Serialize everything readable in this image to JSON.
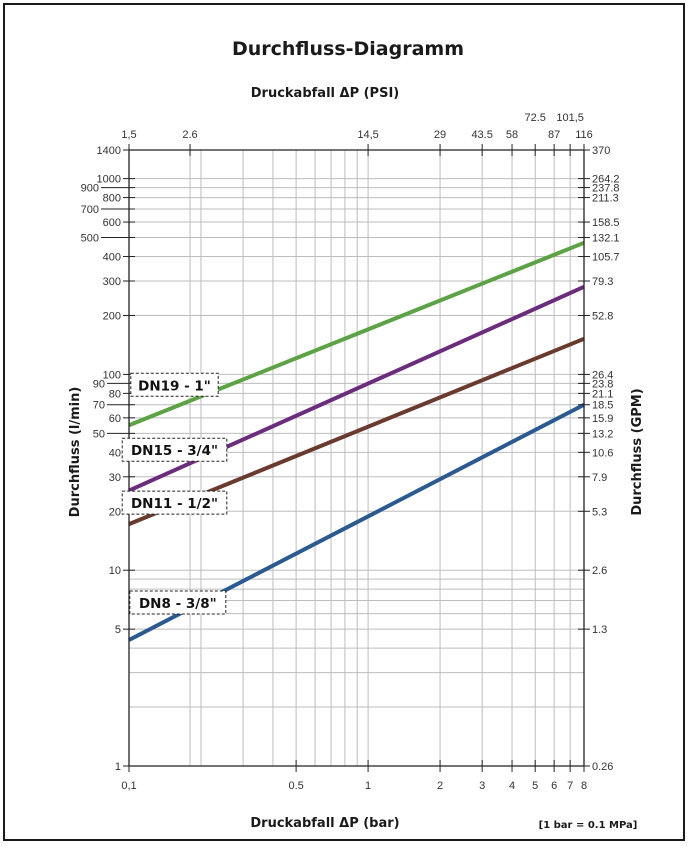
{
  "chart_data": {
    "type": "line",
    "title": "Durchfluss-Diagramm",
    "x_top_label": "Druckabfall ΔP (PSI)",
    "x_label": "Druckabfall ΔP (bar)",
    "y_left_label": "Durchfluss (l/min)",
    "y_right_label": "Durchfluss (GPM)",
    "note": "[1 bar = 0.1 MPa]",
    "x_scale": "log",
    "y_scale": "log",
    "xlim": [
      0.1,
      8
    ],
    "ylim": [
      1,
      1400
    ],
    "grid": true,
    "x_bottom_ticks": [
      {
        "v": 0.1,
        "label": "0,1"
      },
      {
        "v": 0.5,
        "label": "0.5"
      },
      {
        "v": 1,
        "label": "1"
      },
      {
        "v": 2,
        "label": "2"
      },
      {
        "v": 3,
        "label": "3"
      },
      {
        "v": 4,
        "label": "4"
      },
      {
        "v": 5,
        "label": "5"
      },
      {
        "v": 6,
        "label": "6"
      },
      {
        "v": 7,
        "label": "7"
      },
      {
        "v": 8,
        "label": "8"
      }
    ],
    "x_top_ticks": [
      {
        "v": 0.1,
        "label": "1,5"
      },
      {
        "v": 0.18,
        "label": "2.6"
      },
      {
        "v": 1,
        "label": "14,5"
      },
      {
        "v": 2,
        "label": "29"
      },
      {
        "v": 3,
        "label": "43.5"
      },
      {
        "v": 4,
        "label": "58"
      },
      {
        "v": 5,
        "label": "72.5"
      },
      {
        "v": 6,
        "label": "87"
      },
      {
        "v": 7,
        "label": "101,5"
      },
      {
        "v": 8,
        "label": "116"
      }
    ],
    "y_left_ticks": [
      {
        "v": 1400,
        "label": "1400"
      },
      {
        "v": 1000,
        "label": "1000"
      },
      {
        "v": 900,
        "label": "900"
      },
      {
        "v": 800,
        "label": "800"
      },
      {
        "v": 700,
        "label": "700"
      },
      {
        "v": 600,
        "label": "600"
      },
      {
        "v": 500,
        "label": "500"
      },
      {
        "v": 400,
        "label": "400"
      },
      {
        "v": 300,
        "label": "300"
      },
      {
        "v": 200,
        "label": "200"
      },
      {
        "v": 100,
        "label": "100"
      },
      {
        "v": 90,
        "label": "90"
      },
      {
        "v": 80,
        "label": "80"
      },
      {
        "v": 70,
        "label": "70"
      },
      {
        "v": 60,
        "label": "60"
      },
      {
        "v": 50,
        "label": "50"
      },
      {
        "v": 40,
        "label": "40"
      },
      {
        "v": 30,
        "label": "30"
      },
      {
        "v": 20,
        "label": "20"
      },
      {
        "v": 10,
        "label": "10"
      },
      {
        "v": 5,
        "label": "5"
      },
      {
        "v": 1,
        "label": "1"
      }
    ],
    "y_right_ticks": [
      {
        "v": 1400,
        "label": "370"
      },
      {
        "v": 1000,
        "label": "264.2"
      },
      {
        "v": 900,
        "label": "237.8"
      },
      {
        "v": 800,
        "label": "211.3"
      },
      {
        "v": 600,
        "label": "158.5"
      },
      {
        "v": 500,
        "label": "132.1"
      },
      {
        "v": 400,
        "label": "105.7"
      },
      {
        "v": 300,
        "label": "79.3"
      },
      {
        "v": 200,
        "label": "52.8"
      },
      {
        "v": 100,
        "label": "26.4"
      },
      {
        "v": 90,
        "label": "23.8"
      },
      {
        "v": 80,
        "label": "21.1"
      },
      {
        "v": 70,
        "label": "18.5"
      },
      {
        "v": 60,
        "label": "15.9"
      },
      {
        "v": 50,
        "label": "13.2"
      },
      {
        "v": 40,
        "label": "10.6"
      },
      {
        "v": 30,
        "label": "7.9"
      },
      {
        "v": 20,
        "label": "5.3"
      },
      {
        "v": 10,
        "label": "2.6"
      },
      {
        "v": 5,
        "label": "1.3"
      },
      {
        "v": 1,
        "label": "0.26"
      }
    ],
    "series": [
      {
        "name": "DN19 - 1\"",
        "color": "#5ba345",
        "x": [
          0.1,
          8
        ],
        "y": [
          55,
          470
        ]
      },
      {
        "name": "DN15 - 3/4\"",
        "color": "#6b2c7e",
        "x": [
          0.1,
          8
        ],
        "y": [
          25.5,
          280
        ]
      },
      {
        "name": "DN11 - 1/2\"",
        "color": "#6b3a2e",
        "x": [
          0.1,
          8
        ],
        "y": [
          17.2,
          152
        ]
      },
      {
        "name": "DN8 - 3/8\"",
        "color": "#2a5a92",
        "x": [
          0.1,
          8
        ],
        "y": [
          4.4,
          70
        ]
      }
    ],
    "series_label_anchor": [
      {
        "x": 0.155,
        "y": 88
      },
      {
        "x": 0.155,
        "y": 41
      },
      {
        "x": 0.155,
        "y": 22
      },
      {
        "x": 0.16,
        "y": 6.8
      }
    ]
  }
}
